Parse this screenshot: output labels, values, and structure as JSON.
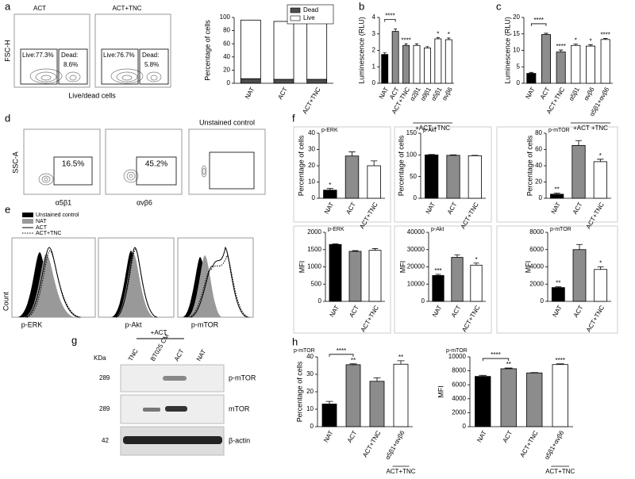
{
  "panel_labels": [
    "a",
    "b",
    "c",
    "d",
    "e",
    "f",
    "g",
    "h"
  ],
  "flow_a": {
    "ylabel": "FSC-H",
    "xlabel": "Live/dead cells",
    "plots": [
      {
        "title": "ACT",
        "live": "Live:77.3%",
        "dead_label": "Dead:",
        "dead_pct": "8.6%"
      },
      {
        "title": "ACT+TNC",
        "live": "Live:76.7%",
        "dead_label": "Dead:",
        "dead_pct": "5.8%"
      }
    ]
  },
  "flow_d": {
    "ylabel": "SSC-A",
    "plots": [
      {
        "xlabel": "α5β1",
        "gate": "16.5%"
      },
      {
        "xlabel": "αvβ6",
        "gate": "45.2%"
      },
      {
        "title": "Unstained control"
      }
    ]
  },
  "histograms_e": {
    "legend": [
      "Unstained control",
      "NAT",
      "ACT",
      "ACT+TNC"
    ],
    "ylabel": "Count",
    "xlabels": [
      "p-ERK",
      "p-Akt",
      "p-mTOR"
    ]
  },
  "western_blot_g": {
    "kda_header": "KDa",
    "group": "+ACT",
    "lanes": [
      "TNC",
      "BT025 CM",
      "ACT",
      "NAT"
    ],
    "rows": [
      {
        "kda": "289",
        "label": "p-mTOR"
      },
      {
        "kda": "289",
        "label": "mTOR"
      },
      {
        "kda": "42",
        "label": "β-actin"
      }
    ]
  },
  "chart_data": [
    {
      "type": "stacked_bar",
      "ylabel": "Percentage of cells",
      "categories": [
        "NAT",
        "ACT",
        "ACT+TNC"
      ],
      "series": [
        {
          "name": "Dead",
          "color": "#4d4d4d",
          "values": [
            7,
            6,
            6
          ]
        },
        {
          "name": "Live",
          "color": "#ffffff",
          "values": [
            89,
            88,
            88
          ]
        }
      ],
      "ylim": [
        0,
        100
      ],
      "yticks": [
        0,
        20,
        40,
        60,
        80,
        100
      ],
      "legend": "upper-right"
    },
    {
      "type": "bar",
      "ylabel": "Luminescence (RLU)",
      "categories": [
        "NAT",
        "ACT",
        "ACT+TNC",
        "α2β1",
        "α9β1",
        "α5β1",
        "αvβ6"
      ],
      "values": [
        1.75,
        3.15,
        2.3,
        2.3,
        2.15,
        2.7,
        2.65
      ],
      "errors": [
        0.1,
        0.15,
        0.1,
        0.1,
        0.08,
        0.08,
        0.1
      ],
      "colors": [
        "#000000",
        "#8c8c8c",
        "#8c8c8c",
        "#ffffff",
        "#ffffff",
        "#ffffff",
        "#ffffff"
      ],
      "ylim": [
        0,
        4
      ],
      "yticks": [
        0,
        1,
        2,
        3,
        4
      ],
      "bracket_label": "****",
      "bar_labels": [
        null,
        null,
        "****",
        null,
        null,
        "*",
        "*"
      ],
      "group_label": "+ACT +TNC"
    },
    {
      "type": "bar",
      "ylabel": "Luminescence (RLU)",
      "categories": [
        "NAT",
        "ACT",
        "ACT+TNC",
        "α5β1",
        "αvβ6",
        "α5β1+αvβ6"
      ],
      "values": [
        3,
        14.8,
        9.5,
        11.5,
        11.3,
        13.3
      ],
      "errors": [
        0.3,
        0.4,
        0.6,
        0.4,
        0.4,
        0.3
      ],
      "colors": [
        "#000000",
        "#8c8c8c",
        "#8c8c8c",
        "#ffffff",
        "#ffffff",
        "#ffffff"
      ],
      "ylim": [
        0,
        20
      ],
      "yticks": [
        0,
        5,
        10,
        15,
        20
      ],
      "bracket_label": "****",
      "bar_labels": [
        null,
        null,
        "****",
        "*",
        "*",
        "****"
      ],
      "group_label": "+ACT +TNC"
    },
    {
      "type": "bar",
      "title": "p-ERK",
      "ylabel": "Percentage of cells",
      "categories": [
        "NAT",
        "ACT",
        "ACT+TNC"
      ],
      "values": [
        5,
        26,
        20
      ],
      "errors": [
        1,
        2.5,
        3
      ],
      "colors": [
        "#000000",
        "#8c8c8c",
        "#ffffff"
      ],
      "ylim": [
        0,
        40
      ],
      "yticks": [
        0,
        10,
        20,
        30,
        40
      ],
      "bar_labels": [
        "*",
        null,
        null
      ]
    },
    {
      "type": "bar",
      "title": "p-Akt",
      "ylabel": "Percentage of cells",
      "categories": [
        "NAT",
        "ACT",
        "ACT+TNC"
      ],
      "values": [
        100,
        99,
        98
      ],
      "errors": [
        1,
        1,
        1
      ],
      "colors": [
        "#000000",
        "#8c8c8c",
        "#ffffff"
      ],
      "ylim": [
        0,
        150
      ],
      "yticks": [
        0,
        50,
        100,
        150
      ]
    },
    {
      "type": "bar",
      "title": "p-mTOR",
      "ylabel": "Percentage of cells",
      "categories": [
        "NAT",
        "ACT",
        "ACT+TNC"
      ],
      "values": [
        5,
        65,
        45
      ],
      "errors": [
        1.5,
        6,
        3
      ],
      "colors": [
        "#000000",
        "#8c8c8c",
        "#ffffff"
      ],
      "ylim": [
        0,
        80
      ],
      "yticks": [
        0,
        20,
        40,
        60,
        80
      ],
      "bar_labels": [
        "**",
        null,
        "*"
      ]
    },
    {
      "type": "bar",
      "title": "p-ERK",
      "ylabel": "MFI",
      "categories": [
        "NAT",
        "ACT",
        "ACT+TNC"
      ],
      "values": [
        1650,
        1450,
        1480
      ],
      "errors": [
        20,
        20,
        50
      ],
      "colors": [
        "#000000",
        "#8c8c8c",
        "#ffffff"
      ],
      "ylim": [
        0,
        2000
      ],
      "yticks": [
        0,
        500,
        1000,
        1500,
        2000
      ]
    },
    {
      "type": "bar",
      "title": "p-Akt",
      "ylabel": "MFI",
      "categories": [
        "NAT",
        "ACT",
        "ACT+TNC"
      ],
      "values": [
        15000,
        25500,
        21000
      ],
      "errors": [
        700,
        1500,
        1200
      ],
      "colors": [
        "#000000",
        "#8c8c8c",
        "#ffffff"
      ],
      "ylim": [
        0,
        40000
      ],
      "yticks": [
        0,
        10000,
        20000,
        30000,
        40000
      ],
      "bar_labels": [
        "***",
        null,
        "*"
      ]
    },
    {
      "type": "bar",
      "title": "p-mTOR",
      "ylabel": "MFI",
      "categories": [
        "NAT",
        "ACT",
        "ACT+TNC"
      ],
      "values": [
        1600,
        6000,
        3700
      ],
      "errors": [
        100,
        600,
        300
      ],
      "colors": [
        "#000000",
        "#8c8c8c",
        "#ffffff"
      ],
      "ylim": [
        0,
        8000
      ],
      "yticks": [
        0,
        2000,
        4000,
        6000,
        8000
      ],
      "bar_labels": [
        "**",
        null,
        "*"
      ]
    },
    {
      "type": "bar",
      "title": "p-mTOR",
      "ylabel": "Percentage of cells",
      "categories": [
        "NAT",
        "ACT",
        "ACT+TNC",
        "α5β1+αvβ6"
      ],
      "values": [
        13,
        35.5,
        26,
        35.8
      ],
      "errors": [
        1.5,
        0.5,
        2,
        2
      ],
      "colors": [
        "#000000",
        "#8c8c8c",
        "#8c8c8c",
        "#ffffff"
      ],
      "ylim": [
        0,
        40
      ],
      "yticks": [
        0,
        10,
        20,
        30,
        40
      ],
      "bracket_label": "****",
      "bar_labels": [
        null,
        "**",
        null,
        "**"
      ],
      "group_label": "ACT+TNC"
    },
    {
      "type": "bar",
      "title": "p-mTOR",
      "ylabel": "MFI",
      "categories": [
        "NAT",
        "ACT",
        "ACT+TNC",
        "α5β1+αvβ6"
      ],
      "values": [
        7200,
        8300,
        7700,
        8900
      ],
      "errors": [
        150,
        100,
        50,
        100
      ],
      "colors": [
        "#000000",
        "#8c8c8c",
        "#8c8c8c",
        "#ffffff"
      ],
      "ylim": [
        0,
        10000
      ],
      "yticks": [
        0,
        2000,
        4000,
        6000,
        8000,
        10000
      ],
      "bracket_label": "****",
      "bar_labels": [
        null,
        "**",
        null,
        "****"
      ],
      "group_label": "ACT+TNC"
    }
  ]
}
